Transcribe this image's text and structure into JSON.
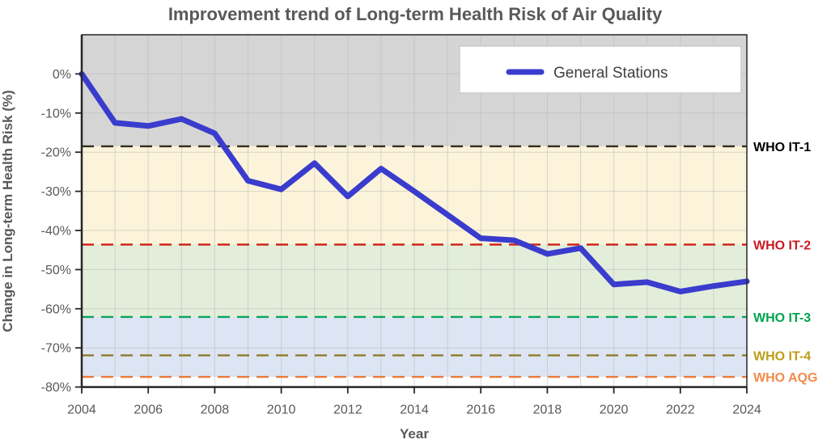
{
  "title": "Improvement trend of Long-term Health Risk of Air Quality",
  "legend": {
    "label": "General Stations"
  },
  "chart_data": {
    "type": "line",
    "title": "Improvement trend of Long-term Health Risk of Air Quality",
    "xlabel": "Year",
    "ylabel": "Change in Long-term Health Risk (%)",
    "x": [
      2004,
      2005,
      2006,
      2007,
      2008,
      2009,
      2010,
      2011,
      2012,
      2013,
      2014,
      2015,
      2016,
      2017,
      2018,
      2019,
      2020,
      2021,
      2022,
      2023,
      2024
    ],
    "series": [
      {
        "name": "General Stations",
        "color": "#3a3ccd",
        "line_width": 7,
        "values": [
          0,
          -12.5,
          -13.3,
          -11.5,
          -15.2,
          -27.3,
          -29.5,
          -22.8,
          -31.3,
          -24.2,
          -30.0,
          -36.0,
          -42.0,
          -42.5,
          -46.0,
          -44.5,
          -53.8,
          -53.2,
          -55.6,
          -54.2,
          -53.0
        ]
      }
    ],
    "ylim": [
      -80,
      10
    ],
    "yticks": [
      0,
      -10,
      -20,
      -30,
      -40,
      -50,
      -60,
      -70,
      -80
    ],
    "ytick_suffix": "%",
    "xticks": [
      2004,
      2006,
      2008,
      2010,
      2012,
      2014,
      2016,
      2018,
      2020,
      2022,
      2024
    ],
    "grid": true,
    "legend_position": "upper right",
    "reference_lines": [
      {
        "label": "WHO IT-1",
        "value": -18.5,
        "line_color": "#332e1a",
        "label_color": "#000000"
      },
      {
        "label": "WHO IT-2",
        "value": -43.6,
        "line_color": "#cf1d12",
        "label_color": "#cb1823"
      },
      {
        "label": "WHO IT-3",
        "value": -62.1,
        "line_color": "#0ca45c",
        "label_color": "#00a44f"
      },
      {
        "label": "WHO IT-4",
        "value": -71.9,
        "line_color": "#8e7c2c",
        "label_color": "#bd9d15"
      },
      {
        "label": "WHO AQG",
        "value": -77.4,
        "line_color": "#e97a3a",
        "label_color": "#f18a4a"
      }
    ],
    "bands": [
      {
        "from": 10,
        "to": -18.5,
        "color": "#d5d5d5"
      },
      {
        "from": -18.5,
        "to": -43.6,
        "color": "#fbf4da"
      },
      {
        "from": -43.6,
        "to": -62.1,
        "color": "#e2eeda"
      },
      {
        "from": -62.1,
        "to": -77.4,
        "color": "#dde4f3"
      }
    ]
  }
}
